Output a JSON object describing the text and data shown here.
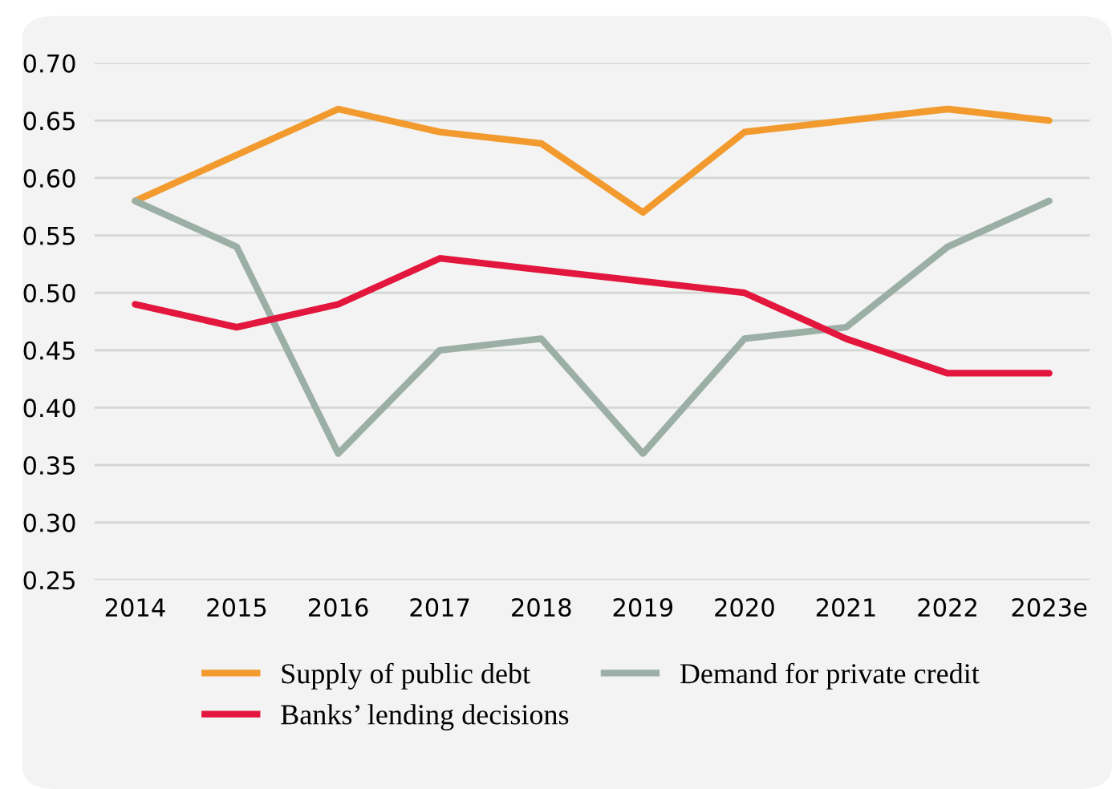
{
  "chart_data": {
    "type": "line",
    "categories": [
      "2014",
      "2015",
      "2016",
      "2017",
      "2018",
      "2019",
      "2020",
      "2021",
      "2022",
      "2023e"
    ],
    "series": [
      {
        "name": "Supply of public debt",
        "color": "#f29a2e",
        "values": [
          0.58,
          0.62,
          0.66,
          0.64,
          0.63,
          0.57,
          0.64,
          0.65,
          0.66,
          0.65
        ]
      },
      {
        "name": "Demand for private credit",
        "color": "#9cafa6",
        "values": [
          0.58,
          0.54,
          0.36,
          0.45,
          0.46,
          0.36,
          0.46,
          0.47,
          0.54,
          0.58
        ]
      },
      {
        "name": "Banks’ lending decisions",
        "color": "#e3173e",
        "values": [
          0.49,
          0.47,
          0.49,
          0.53,
          0.52,
          0.51,
          0.5,
          0.46,
          0.43,
          0.43
        ]
      }
    ],
    "ylim": [
      0.25,
      0.7
    ],
    "yticks": [
      {
        "value": 0.25,
        "label": "0.25"
      },
      {
        "value": 0.3,
        "label": "0.30"
      },
      {
        "value": 0.35,
        "label": "0.35"
      },
      {
        "value": 0.4,
        "label": "0.40"
      },
      {
        "value": 0.45,
        "label": "0.45"
      },
      {
        "value": 0.5,
        "label": "0.50"
      },
      {
        "value": 0.55,
        "label": "0.55"
      },
      {
        "value": 0.6,
        "label": "0.60"
      },
      {
        "value": 0.65,
        "label": "0.65"
      },
      {
        "value": 0.7,
        "label": "0.70"
      }
    ],
    "grid": "y",
    "legend": "bottom",
    "marker": "none",
    "line_style": "solid"
  }
}
